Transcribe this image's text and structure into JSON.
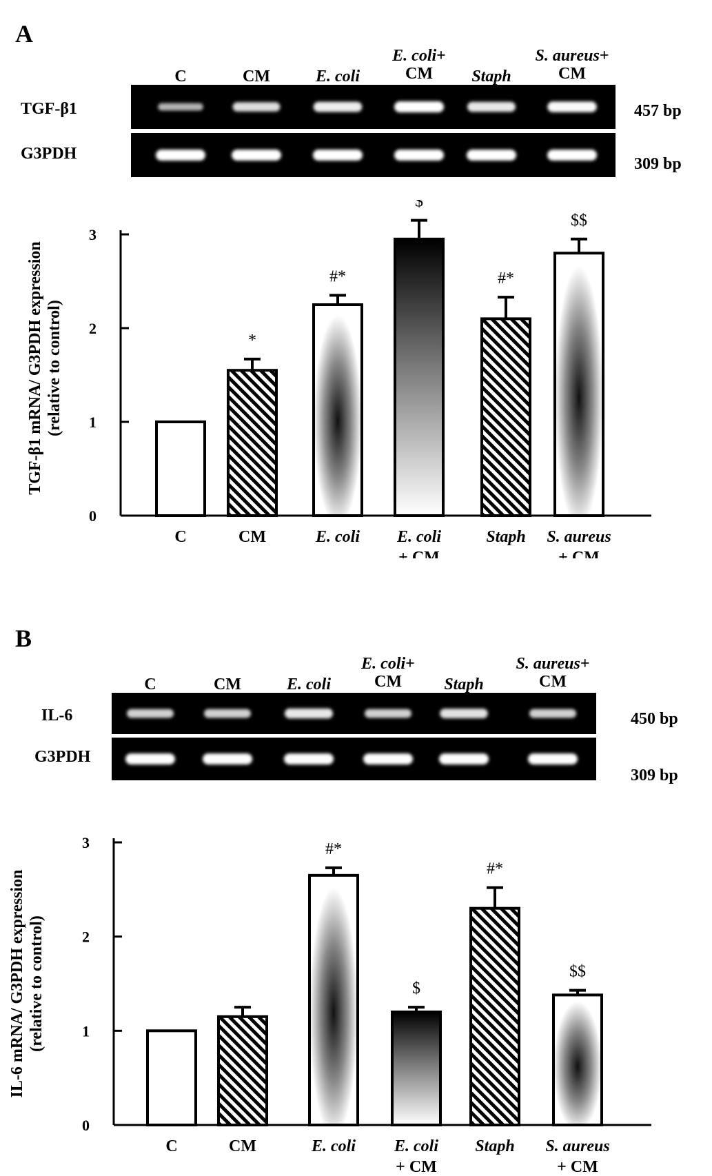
{
  "panels": [
    {
      "letter": "A",
      "gel": {
        "lanes": [
          "C",
          "CM",
          "E. coli",
          "E. coli + CM",
          "Staph",
          "S. aureus + CM"
        ],
        "rows": [
          {
            "label": "TGF-β1",
            "bp": "457 bp",
            "band_intensity": [
              0.35,
              0.7,
              0.85,
              1.0,
              0.8,
              0.95
            ]
          },
          {
            "label": "G3PDH",
            "bp": "309 bp",
            "band_intensity": [
              1,
              1,
              1,
              1,
              1,
              1
            ]
          }
        ]
      },
      "chart_data": {
        "type": "bar",
        "ylabel": "TGF-β1 mRNA/ G3PDH expression (relative to control)",
        "categories": [
          "C",
          "CM",
          "E. coli",
          "E. coli + CM",
          "Staph",
          "S. aureus + CM"
        ],
        "values": [
          1.0,
          1.55,
          2.25,
          2.95,
          2.1,
          2.8
        ],
        "errors": [
          0,
          0.12,
          0.1,
          0.2,
          0.23,
          0.15
        ],
        "annotations": [
          "",
          "*",
          "#*",
          "$",
          "#*",
          "$$"
        ],
        "fills": [
          "white",
          "hatch",
          "radial-dark-center",
          "gradient-dark-top",
          "hatch",
          "radial-dark-center"
        ],
        "ylim": [
          0,
          3
        ],
        "yticks": [
          0,
          1,
          2,
          3
        ]
      }
    },
    {
      "letter": "B",
      "gel": {
        "lanes": [
          "C",
          "CM",
          "E. coli",
          "E. coli + CM",
          "Staph",
          "S. aureus + CM"
        ],
        "rows": [
          {
            "label": "IL-6",
            "bp": "450 bp",
            "band_intensity": [
              0.6,
              0.6,
              0.8,
              0.6,
              0.75,
              0.6
            ]
          },
          {
            "label": "G3PDH",
            "bp": "309 bp",
            "band_intensity": [
              1,
              1,
              1,
              1,
              1,
              1
            ]
          }
        ]
      },
      "chart_data": {
        "type": "bar",
        "ylabel": "IL-6 mRNA/ G3PDH expression (relative to control)",
        "categories": [
          "C",
          "CM",
          "E. coli",
          "E. coli + CM",
          "Staph",
          "S. aureus + CM"
        ],
        "values": [
          1.0,
          1.15,
          2.65,
          1.2,
          2.3,
          1.38
        ],
        "errors": [
          0,
          0.1,
          0.08,
          0.05,
          0.22,
          0.05
        ],
        "annotations": [
          "",
          "",
          "#*",
          "$",
          "#*",
          "$$"
        ],
        "fills": [
          "white",
          "hatch",
          "radial-dark-center",
          "gradient-dark-top",
          "hatch",
          "radial-dark-center"
        ],
        "ylim": [
          0,
          3
        ],
        "yticks": [
          0,
          1,
          2,
          3
        ]
      }
    }
  ]
}
